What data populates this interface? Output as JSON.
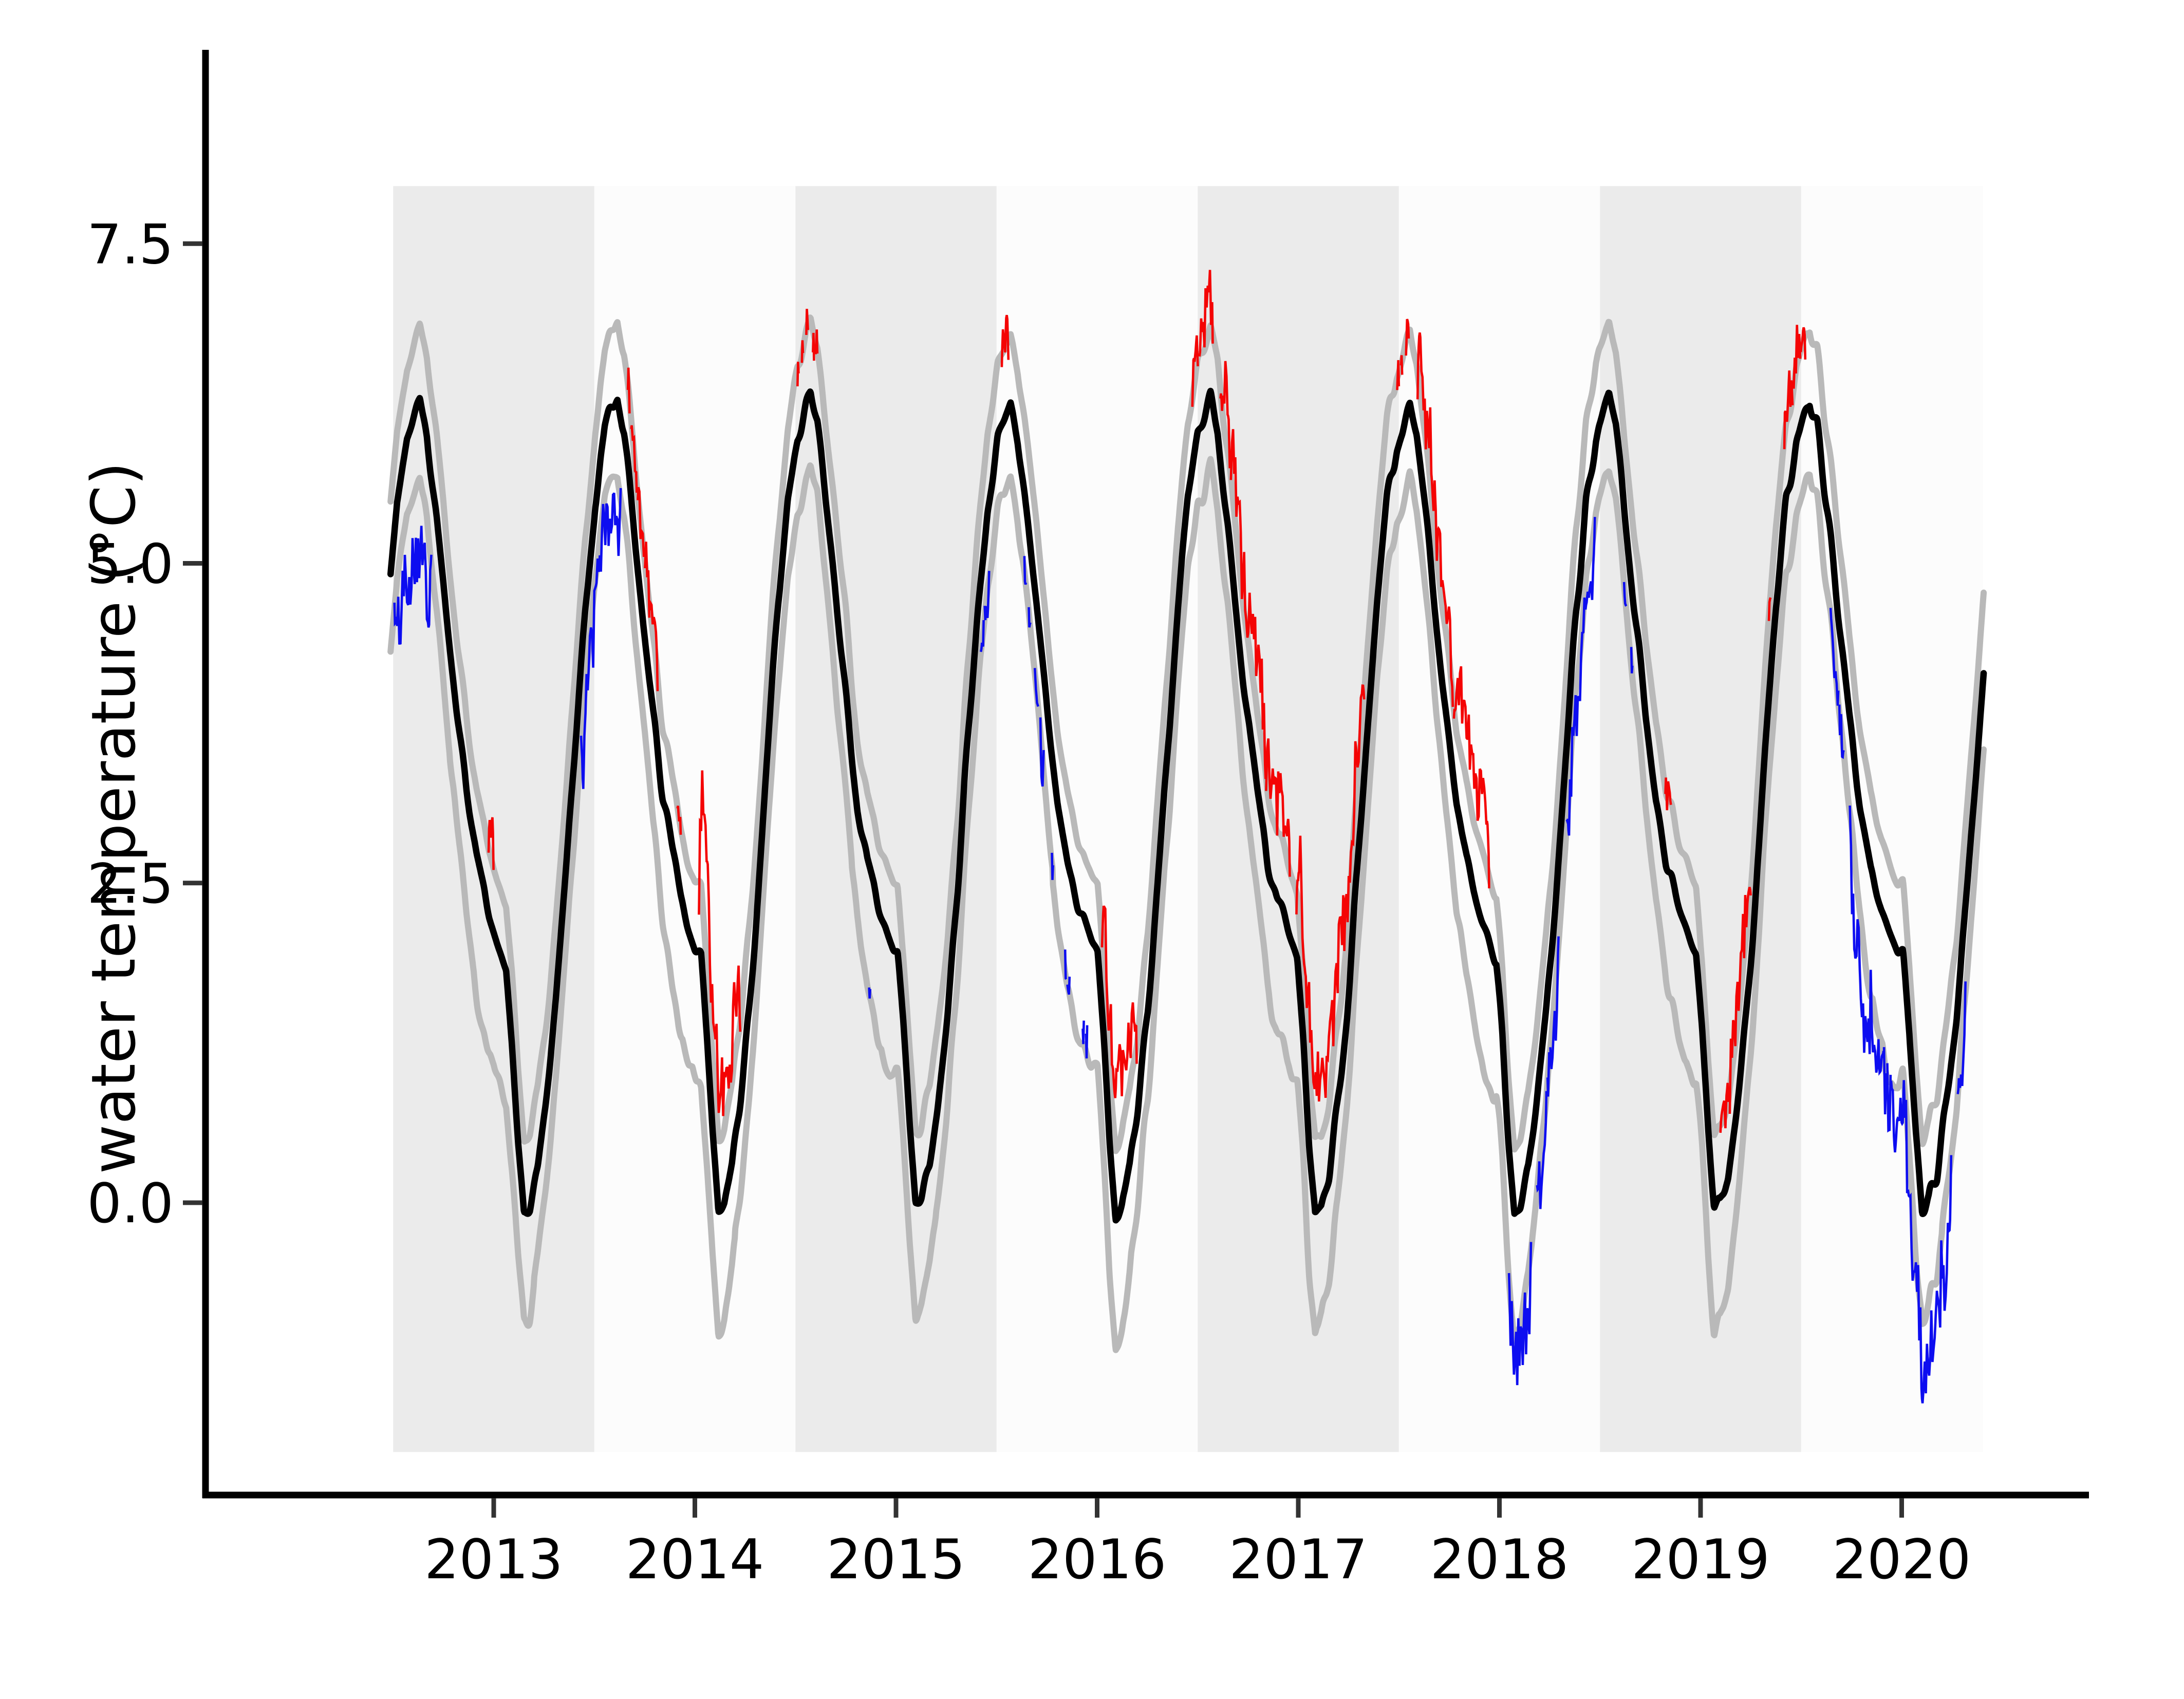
{
  "chart_data": {
    "type": "line",
    "title": "",
    "xlabel": "",
    "ylabel": "water temperature (°C)",
    "x_ticks": [
      2013,
      2014,
      2015,
      2016,
      2017,
      2018,
      2019,
      2020
    ],
    "x_tick_labels": [
      "2013",
      "2014",
      "2015",
      "2016",
      "2017",
      "2018",
      "2019",
      "2020"
    ],
    "y_ticks": [
      0.0,
      2.5,
      5.0,
      7.5
    ],
    "y_tick_labels": [
      "0.0",
      "2.5",
      "5.0",
      "7.5"
    ],
    "x_axis_range": [
      2011.57,
      2020.93
    ],
    "y_axis_range": [
      -2.28,
      8.99
    ],
    "grid": false,
    "legend": null,
    "series_description": [
      {
        "name": "climatological mean",
        "style": "black line"
      },
      {
        "name": "climatological envelope (upper and lower bounds)",
        "style": "gray lines"
      },
      {
        "name": "observed daily temperature",
        "style": "drawn red when above upper envelope, blue when below lower envelope, hidden when inside envelope"
      }
    ],
    "data_span": {
      "obs_start": 2012.49,
      "obs_end": 2020.335,
      "clim_start": 2012.487,
      "clim_end": 2020.405
    },
    "observed_extremes": {
      "max": 7.25,
      "max_time": 2019.45,
      "min": -1.75,
      "min_time": 2020.1
    },
    "climatology_mean_keypoints": {
      "frac": [
        0.0,
        0.03,
        0.06,
        0.09,
        0.12,
        0.16,
        0.2,
        0.25,
        0.3,
        0.35,
        0.4,
        0.45,
        0.5,
        0.565,
        0.6,
        0.65,
        0.7,
        0.75,
        0.8,
        0.85,
        0.9,
        0.95,
        1.0
      ],
      "value": [
        1.9,
        1.3,
        0.55,
        -0.05,
        0.0,
        0.25,
        0.75,
        1.5,
        2.5,
        3.6,
        4.65,
        5.5,
        6.0,
        6.3,
        6.05,
        5.35,
        4.55,
        3.8,
        3.15,
        2.7,
        2.4,
        2.15,
        1.9
      ]
    },
    "envelope_upper_offset_keypoints": [
      [
        0.0,
        0.5
      ],
      [
        0.09,
        0.55
      ],
      [
        0.2,
        0.6
      ],
      [
        0.3,
        0.62
      ],
      [
        0.4,
        0.6
      ],
      [
        0.5,
        0.57
      ],
      [
        0.565,
        0.55
      ],
      [
        0.65,
        0.6
      ],
      [
        0.75,
        0.62
      ],
      [
        0.85,
        0.55
      ],
      [
        1.0,
        0.5
      ]
    ],
    "envelope_lower_offset_keypoints": [
      [
        0.0,
        0.9
      ],
      [
        0.06,
        0.95
      ],
      [
        0.09,
        0.9
      ],
      [
        0.15,
        0.8
      ],
      [
        0.22,
        0.7
      ],
      [
        0.3,
        0.65
      ],
      [
        0.4,
        0.6
      ],
      [
        0.5,
        0.57
      ],
      [
        0.565,
        0.55
      ],
      [
        0.63,
        0.6
      ],
      [
        0.7,
        0.68
      ],
      [
        0.78,
        0.8
      ],
      [
        0.85,
        0.95
      ],
      [
        0.92,
        1.05
      ],
      [
        0.97,
        1.0
      ],
      [
        1.0,
        0.9
      ]
    ],
    "seasonal_timing_shift_keypoints": [
      [
        2012.5,
        -0.07
      ],
      [
        2013.5,
        -0.055
      ],
      [
        2014.5,
        -0.01
      ],
      [
        2015.5,
        -0.005
      ],
      [
        2016.5,
        0.0
      ],
      [
        2017.5,
        0.01
      ],
      [
        2018.5,
        0.02
      ],
      [
        2019.5,
        0.025
      ],
      [
        2020.4,
        -0.03
      ]
    ],
    "anomaly_episodes": [
      {
        "start": 2012.49,
        "end": 2012.7,
        "type": "cold",
        "extent": [
          4.2,
          5.7
        ],
        "bias": -1.05,
        "variability": 2.2
      },
      {
        "start": 2012.7,
        "end": 2012.9,
        "type": "cold",
        "extent": [
          2.5,
          4.5
        ],
        "bias": -0.55,
        "variability": 1.8
      },
      {
        "start": 2012.965,
        "end": 2013.005,
        "type": "warm",
        "extent": [
          2.5,
          3.3
        ],
        "bias": 0.75,
        "variability": 1.6
      },
      {
        "start": 2013.03,
        "end": 2013.1,
        "type": "cold",
        "extent": [
          -0.6,
          0.4
        ],
        "bias": -0.55,
        "variability": 1.5
      },
      {
        "start": 2013.42,
        "end": 2013.65,
        "type": "cold",
        "extent": [
          3.5,
          5.6
        ],
        "bias": -0.85,
        "variability": 2.0
      },
      {
        "start": 2013.65,
        "end": 2013.83,
        "type": "warm",
        "extent": [
          3.2,
          6.3
        ],
        "bias": 0.6,
        "variability": 1.9
      },
      {
        "start": 2013.86,
        "end": 2013.95,
        "type": "warm",
        "extent": [
          2.6,
          3.3
        ],
        "bias": 0.45,
        "variability": 1.6
      },
      {
        "start": 2014.01,
        "end": 2014.24,
        "type": "warm",
        "extent": [
          0.8,
          2.7
        ],
        "bias": 1.05,
        "variability": 2.2
      },
      {
        "start": 2014.49,
        "end": 2014.63,
        "type": "warm",
        "extent": [
          5.9,
          6.7
        ],
        "bias": 0.5,
        "variability": 1.7
      },
      {
        "start": 2014.84,
        "end": 2014.9,
        "type": "cold",
        "extent": [
          -1.45,
          0.3
        ],
        "bias": -0.85,
        "variability": 2.0
      },
      {
        "start": 2014.9,
        "end": 2014.92,
        "type": "warm",
        "extent": [
          2.2,
          2.4
        ],
        "bias": 0.4,
        "variability": 1.3
      },
      {
        "start": 2015.4,
        "end": 2015.48,
        "type": "cold",
        "extent": [
          4.6,
          5.4
        ],
        "bias": -0.65,
        "variability": 1.5
      },
      {
        "start": 2015.51,
        "end": 2015.57,
        "type": "warm",
        "extent": [
          6.5,
          7.0
        ],
        "bias": 0.6,
        "variability": 1.5
      },
      {
        "start": 2015.62,
        "end": 2015.82,
        "type": "cold",
        "extent": [
          2.0,
          5.1
        ],
        "bias": -0.7,
        "variability": 1.8
      },
      {
        "start": 2015.82,
        "end": 2015.97,
        "type": "cold",
        "extent": [
          -1.3,
          1.5
        ],
        "bias": -0.85,
        "variability": 2.0
      },
      {
        "start": 2016.01,
        "end": 2016.21,
        "type": "warm",
        "extent": [
          0.7,
          1.8
        ],
        "bias": 0.95,
        "variability": 2.0
      },
      {
        "start": 2016.46,
        "end": 2016.59,
        "type": "warm",
        "extent": [
          5.5,
          7.1
        ],
        "bias": 0.65,
        "variability": 1.8
      },
      {
        "start": 2016.6,
        "end": 2016.97,
        "type": "warm",
        "extent": [
          1.3,
          5.3
        ],
        "bias": 0.85,
        "variability": 2.2
      },
      {
        "start": 2016.98,
        "end": 2017.34,
        "type": "warm",
        "extent": [
          0.8,
          6.5
        ],
        "bias": 0.95,
        "variability": 2.2
      },
      {
        "start": 2017.44,
        "end": 2017.57,
        "type": "warm",
        "extent": [
          6.0,
          6.9
        ],
        "bias": 0.6,
        "variability": 1.7
      },
      {
        "start": 2017.58,
        "end": 2017.96,
        "type": "warm",
        "extent": [
          1.5,
          5.8
        ],
        "bias": 0.85,
        "variability": 2.2
      },
      {
        "start": 2018.03,
        "end": 2018.17,
        "type": "cold",
        "extent": [
          -1.7,
          0.5
        ],
        "bias": -1.15,
        "variability": 2.3
      },
      {
        "start": 2018.17,
        "end": 2018.31,
        "type": "cold",
        "extent": [
          -0.5,
          3.1
        ],
        "bias": -0.85,
        "variability": 2.0
      },
      {
        "start": 2018.32,
        "end": 2018.49,
        "type": "cold",
        "extent": [
          3.5,
          5.6
        ],
        "bias": -0.8,
        "variability": 2.0
      },
      {
        "start": 2018.54,
        "end": 2018.6,
        "type": "warm",
        "extent": [
          4.4,
          5.0
        ],
        "bias": 0.45,
        "variability": 1.4
      },
      {
        "start": 2018.6,
        "end": 2018.7,
        "type": "cold",
        "extent": [
          2.0,
          4.0
        ],
        "bias": -0.55,
        "variability": 1.5
      },
      {
        "start": 2018.79,
        "end": 2018.87,
        "type": "warm",
        "extent": [
          1.6,
          3.0
        ],
        "bias": 0.55,
        "variability": 1.6
      },
      {
        "start": 2019.08,
        "end": 2019.27,
        "type": "warm",
        "extent": [
          0.9,
          2.8
        ],
        "bias": 0.7,
        "variability": 1.8
      },
      {
        "start": 2019.29,
        "end": 2019.39,
        "type": "warm",
        "extent": [
          3.6,
          5.2
        ],
        "bias": 0.5,
        "variability": 1.6
      },
      {
        "start": 2019.4,
        "end": 2019.53,
        "type": "warm",
        "extent": [
          5.4,
          7.25
        ],
        "bias": 0.75,
        "variability": 1.8
      },
      {
        "start": 2019.62,
        "end": 2019.73,
        "type": "cold",
        "extent": [
          2.1,
          3.7
        ],
        "bias": -0.6,
        "variability": 1.7
      },
      {
        "start": 2019.73,
        "end": 2020.26,
        "type": "cold",
        "extent": [
          -1.75,
          2.2
        ],
        "bias": -1.25,
        "variability": 2.6
      },
      {
        "start": 2020.26,
        "end": 2020.335,
        "type": "cold",
        "extent": [
          0.5,
          3.0
        ],
        "bias": -0.85,
        "variability": 1.8
      }
    ],
    "background_bands": {
      "description": "alternating one-year shaded bands centered on each year tick, clipped to the data span",
      "gray_years": [
        2013,
        2015,
        2017,
        2019
      ],
      "light_years": [
        2014,
        2016,
        2018,
        2020
      ],
      "value_top": 7.95,
      "value_bottom": -1.95
    }
  },
  "style": {
    "mean_color": "#000000",
    "envelope_color": "#b9b9b9",
    "warm_color": "#f40404",
    "cold_color": "#0d0df0",
    "band_gray": "#ebebeb",
    "band_light": "#fcfcfc",
    "spine_color": "#000000",
    "tick_color": "#333333",
    "label_color": "#000000",
    "figure_background": "#ffffff"
  }
}
